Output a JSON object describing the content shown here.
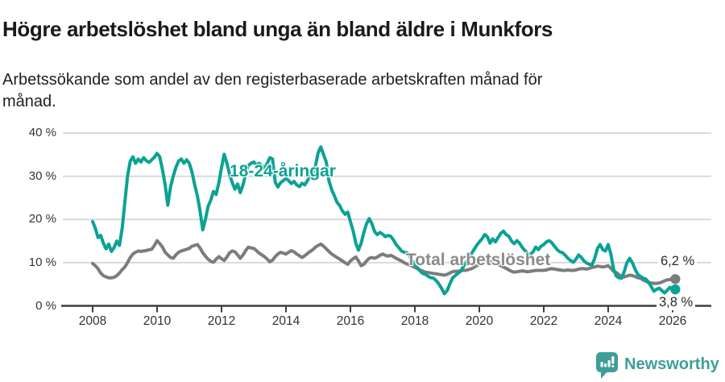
{
  "header": {
    "title": "Högre arbetslöshet bland unga än bland äldre i Munkfors",
    "subtitle": "Arbetssökande som andel av den registerbaserade arbetskraften månad för månad."
  },
  "chart_data": {
    "type": "line",
    "title": "Högre arbetslöshet bland unga än bland äldre i Munkfors",
    "subtitle": "Arbetssökande som andel av den registerbaserade arbetskraften månad för månad.",
    "unit": "%",
    "x_range_label": "monthly, 2008-01 to 2026-02",
    "x_start": 2008,
    "x_step_months": 1,
    "ylim": [
      0,
      40
    ],
    "grid": "horizontal",
    "legend_position": "inline-labels",
    "colors": {
      "grid": "#d9d9d9",
      "axis": "#3e3e3e",
      "tick_text": "#333333"
    },
    "yticks": [
      {
        "v": 0,
        "label": "0 %"
      },
      {
        "v": 10,
        "label": "10 %"
      },
      {
        "v": 20,
        "label": "20 %"
      },
      {
        "v": 30,
        "label": "30 %"
      },
      {
        "v": 40,
        "label": "40 %"
      }
    ],
    "xticks": [
      {
        "v": 2008,
        "label": "2008"
      },
      {
        "v": 2010,
        "label": "2010"
      },
      {
        "v": 2012,
        "label": "2012"
      },
      {
        "v": 2014,
        "label": "2014"
      },
      {
        "v": 2016,
        "label": "2016"
      },
      {
        "v": 2018,
        "label": "2018"
      },
      {
        "v": 2020,
        "label": "2020"
      },
      {
        "v": 2022,
        "label": "2022"
      },
      {
        "v": 2024,
        "label": "2024"
      },
      {
        "v": 2026,
        "label": "2026"
      }
    ],
    "series": [
      {
        "name": "18-24-åringar",
        "color": "#0ba294",
        "end_label": "3,8 %",
        "end_value": 3.8,
        "values": [
          19.5,
          18,
          15.8,
          16.3,
          14.5,
          13.2,
          14.3,
          12.6,
          13.5,
          15,
          14,
          18,
          24,
          30,
          33.5,
          34.5,
          33,
          34,
          33.3,
          34.3,
          33.6,
          33.2,
          33.8,
          34.4,
          35.3,
          34.5,
          31.5,
          28,
          23.3,
          27.5,
          30,
          32,
          33.5,
          34,
          33,
          33.8,
          33,
          31,
          28,
          25.5,
          22,
          17.6,
          20,
          23,
          24.5,
          26.5,
          25.8,
          28.5,
          32,
          35.1,
          33,
          30.5,
          28.5,
          27,
          28.2,
          26.2,
          28,
          30.5,
          32.5,
          33,
          33.3,
          32.6,
          33,
          32.4,
          31.8,
          33,
          34.3,
          34,
          28.6,
          27.5,
          28.5,
          29,
          29.5,
          29,
          28.3,
          28.8,
          28,
          27.6,
          28.4,
          28,
          29,
          30,
          30.5,
          32.5,
          35.5,
          36.8,
          35,
          33.3,
          29,
          26.9,
          25.5,
          24,
          23.2,
          22,
          21.2,
          21.7,
          19.5,
          17.4,
          14.5,
          12.9,
          14.5,
          17,
          19,
          20.2,
          19,
          17.2,
          16.5,
          17,
          16.6,
          16,
          16.3,
          16.1,
          15.3,
          14.2,
          13.5,
          12.7,
          12.4,
          12.3,
          11.5,
          10.5,
          9.5,
          8.8,
          8,
          7.5,
          7.3,
          6.8,
          6.5,
          6.4,
          5.8,
          5,
          4,
          2.8,
          3.5,
          5,
          6.4,
          7,
          7.5,
          8,
          9,
          10,
          11,
          12,
          13,
          14,
          14.8,
          15.5,
          16.5,
          16,
          14.5,
          15.5,
          14.8,
          15.8,
          16.8,
          17.3,
          16.5,
          16.1,
          15,
          14.4,
          15.1,
          14.5,
          13.5,
          12.8,
          12.2,
          11.9,
          12.5,
          13.6,
          13,
          13.8,
          14.2,
          14.8,
          15.1,
          14.6,
          13.8,
          13,
          12.5,
          12.3,
          11.7,
          11,
          10.5,
          10.1,
          10.8,
          11.8,
          11.2,
          10.4,
          9.9,
          9.6,
          9.5,
          11,
          13.3,
          14.2,
          13,
          12.7,
          14.2,
          12,
          8.5,
          6.9,
          6.5,
          6.4,
          8,
          10,
          11,
          10,
          8.5,
          7.3,
          6.8,
          6.4,
          6.2,
          5.5,
          4.5,
          3.4,
          3.8,
          4.1,
          3.5,
          3,
          3.6,
          4.3,
          3.9,
          3.8
        ]
      },
      {
        "name": "Total arbetslöshet",
        "color": "#7c7c7c",
        "label_color": "#8a8a8a",
        "end_label": "6,2 %",
        "end_value": 6.2,
        "values": [
          9.8,
          9.3,
          8.6,
          7.6,
          7,
          6.7,
          6.5,
          6.5,
          6.6,
          7,
          7.6,
          8.4,
          9,
          10,
          11.2,
          12,
          12.4,
          12.7,
          12.6,
          12.7,
          12.8,
          13,
          13.1,
          14,
          15.1,
          14.4,
          13.6,
          12.4,
          11.8,
          11.2,
          11,
          11.8,
          12.4,
          12.7,
          12.9,
          13.1,
          13.3,
          13.8,
          14,
          14.2,
          13.4,
          12.3,
          11.5,
          10.8,
          10.3,
          10.1,
          10.8,
          11.4,
          10.9,
          10.5,
          11.3,
          12.3,
          12.7,
          12.5,
          11.8,
          11,
          11.8,
          12.8,
          13.6,
          13.4,
          13.3,
          12.8,
          12.2,
          11.8,
          11.4,
          10.8,
          10.2,
          10.6,
          11.4,
          12,
          12.4,
          12.2,
          12,
          12.4,
          12.8,
          12.5,
          12,
          11.6,
          11.2,
          11.6,
          12.1,
          12.6,
          13,
          13.6,
          14,
          14.3,
          13.8,
          13.2,
          12.6,
          12,
          11.6,
          11.2,
          10.8,
          10.4,
          10,
          9.6,
          10.4,
          10.9,
          11.3,
          10.4,
          9.3,
          9.6,
          10.4,
          11,
          11.2,
          11,
          11.3,
          11.7,
          12,
          11.7,
          11.5,
          11.7,
          11.4,
          11,
          10.7,
          10.4,
          10,
          9.7,
          9.5,
          9.2,
          8.9,
          8.6,
          8.3,
          8,
          7.8,
          7.7,
          7.6,
          7.5,
          7.4,
          7.3,
          7.2,
          7.1,
          7.3,
          7.6,
          7.9,
          8,
          8,
          8.1,
          8.2,
          8.2,
          8.4,
          8.6,
          8.9,
          9.3,
          9.6,
          10,
          10.4,
          10.5,
          10.3,
          10.1,
          9.9,
          9.6,
          9.3,
          9,
          8.7,
          8.3,
          8,
          7.8,
          7.9,
          8,
          8.1,
          8,
          7.9,
          8,
          8.1,
          8.2,
          8.2,
          8.2,
          8.2,
          8.3,
          8.5,
          8.6,
          8.5,
          8.4,
          8.3,
          8.2,
          8.2,
          8.3,
          8.2,
          8.2,
          8.3,
          8.5,
          8.6,
          8.6,
          8.5,
          8.7,
          8.9,
          9,
          9.2,
          9.1,
          9,
          9.1,
          9.3,
          8.7,
          8,
          7.7,
          7.2,
          6.8,
          6.7,
          6.9,
          7.1,
          7,
          6.8,
          6.5,
          6.4,
          6,
          5.7,
          5.4,
          5.3,
          5.2,
          5.2,
          5.3,
          5.5,
          5.8,
          6,
          6.1,
          6.2,
          6.2
        ]
      }
    ]
  },
  "footer": {
    "brand": "Newsworthy",
    "brand_color": "#3f9e97"
  }
}
